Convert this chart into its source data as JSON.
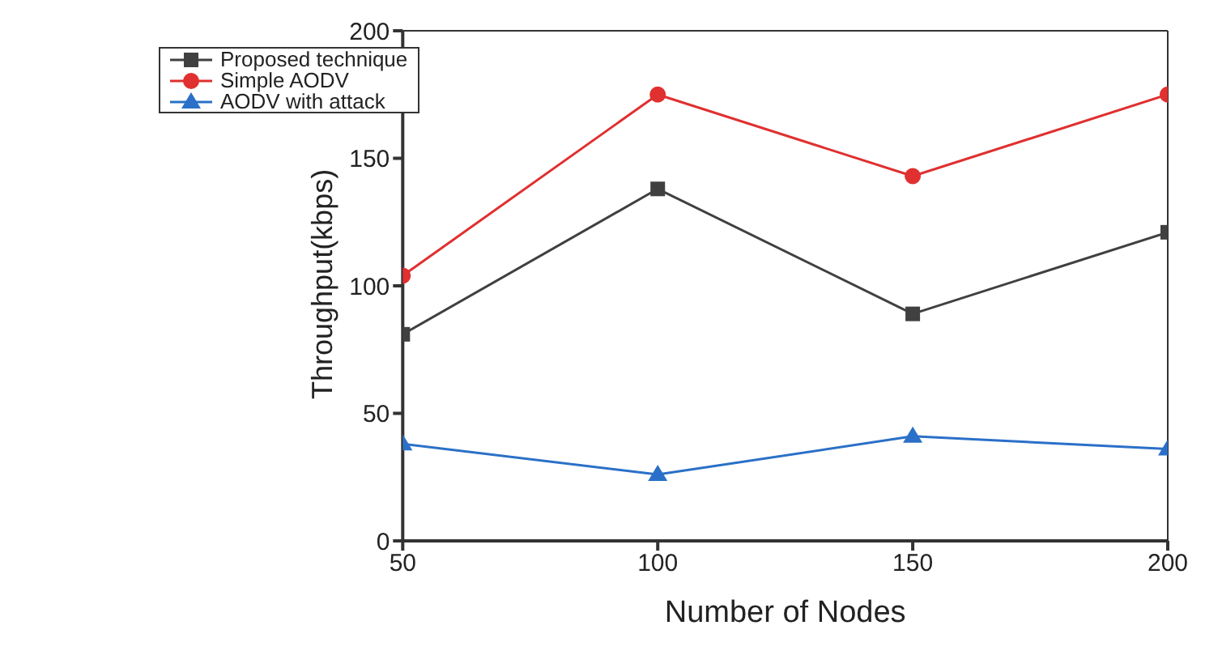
{
  "chart_data": {
    "type": "line",
    "xlabel": "Number of Nodes",
    "ylabel": "Throughput(kbps)",
    "x": [
      50,
      100,
      150,
      200
    ],
    "series": [
      {
        "name": "Proposed technique",
        "color": "#404040",
        "marker": "square",
        "values": [
          81,
          138,
          89,
          121
        ]
      },
      {
        "name": "Simple AODV",
        "color": "#e03030",
        "marker": "circle",
        "values": [
          104,
          175,
          143,
          175
        ]
      },
      {
        "name": "AODV with attack",
        "color": "#2a70c8",
        "marker": "triangle",
        "values": [
          38,
          26,
          41,
          36
        ]
      }
    ],
    "xlim": [
      50,
      200
    ],
    "xticks": [
      50,
      100,
      150,
      200
    ],
    "ylim": [
      0,
      200
    ],
    "yticks": [
      0,
      50,
      100,
      150,
      200
    ],
    "grid": false,
    "legend": "top left"
  }
}
